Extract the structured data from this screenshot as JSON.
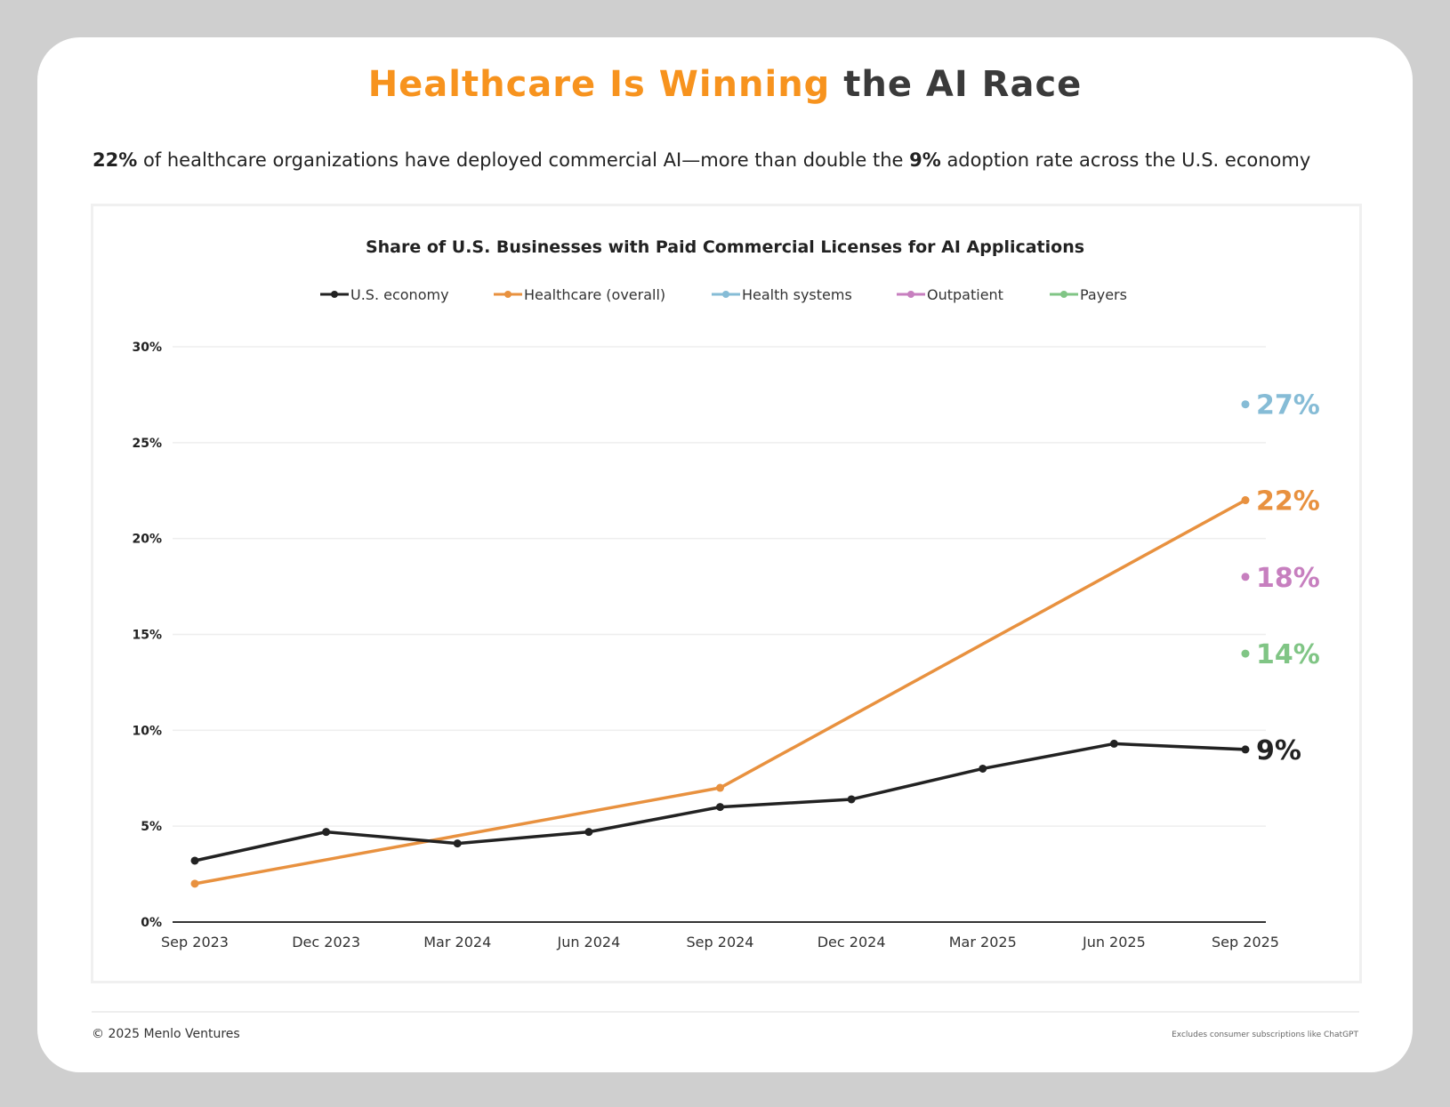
{
  "header": {
    "title_highlight": "Healthcare Is Winning",
    "title_rest": " the AI Race",
    "subtitle_b1": "22%",
    "subtitle_t1": " of healthcare organizations have deployed commercial AI—more than double the ",
    "subtitle_b2": "9%",
    "subtitle_t2": " adoption rate across the U.S. economy"
  },
  "footer": {
    "copyright": "© 2025 Menlo Ventures",
    "note": "Excludes consumer subscriptions like ChatGPT"
  },
  "chart_data": {
    "type": "line",
    "title": "Share of U.S. Businesses with Paid Commercial Licenses for AI Applications",
    "xlabel": "",
    "ylabel": "",
    "categories": [
      "Sep 2023",
      "Dec 2023",
      "Mar 2024",
      "Jun 2024",
      "Sep 2024",
      "Dec 2024",
      "Mar 2025",
      "Jun 2025",
      "Sep 2025"
    ],
    "yticks": [
      "0%",
      "5%",
      "10%",
      "15%",
      "20%",
      "25%",
      "30%"
    ],
    "ylim": [
      0,
      30
    ],
    "grid": true,
    "legend_position": "top",
    "series": [
      {
        "name": "U.S. economy",
        "color": "#222222",
        "values": [
          3.2,
          4.7,
          4.1,
          4.7,
          6.0,
          6.4,
          8.0,
          9.3,
          9.0
        ],
        "end_label": "9%"
      },
      {
        "name": "Healthcare (overall)",
        "color": "#e8913f",
        "values": [
          2.0,
          null,
          null,
          null,
          7.0,
          null,
          null,
          null,
          22.0
        ],
        "end_label": "22%"
      },
      {
        "name": "Health systems",
        "color": "#86bcd6",
        "values": [
          null,
          null,
          null,
          null,
          null,
          null,
          null,
          null,
          27.0
        ],
        "end_label": "27%"
      },
      {
        "name": "Outpatient",
        "color": "#c77fbf",
        "values": [
          null,
          null,
          null,
          null,
          null,
          null,
          null,
          null,
          18.0
        ],
        "end_label": "18%"
      },
      {
        "name": "Payers",
        "color": "#80c585",
        "values": [
          null,
          null,
          null,
          null,
          null,
          null,
          null,
          null,
          14.0
        ],
        "end_label": "14%"
      }
    ]
  }
}
